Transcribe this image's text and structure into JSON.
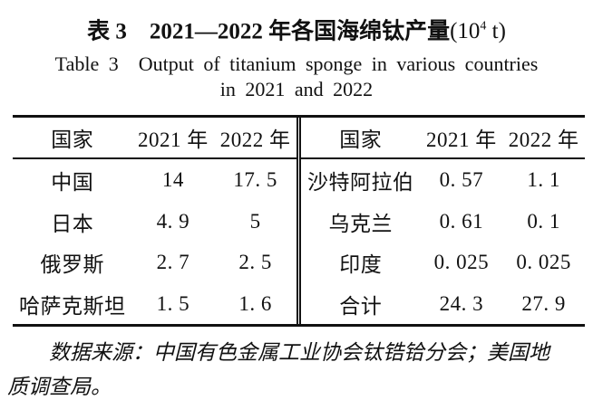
{
  "title": {
    "zh_main": "表 3　2021—2022 年各国海绵钛产量",
    "unit_pre": "(10",
    "unit_sup": "4",
    "unit_post": " t)",
    "en_line1": "Table 3　Output of titanium sponge in various countries",
    "en_line2": "in 2021 and 2022"
  },
  "table": {
    "left": {
      "headers": [
        "国家",
        "2021 年",
        "2022 年"
      ],
      "rows": [
        {
          "country": "中国",
          "y2021": "14",
          "y2022": "17. 5"
        },
        {
          "country": "日本",
          "y2021": "4. 9",
          "y2022": "5"
        },
        {
          "country": "俄罗斯",
          "y2021": "2. 7",
          "y2022": "2. 5"
        },
        {
          "country": "哈萨克斯坦",
          "y2021": "1. 5",
          "y2022": "1. 6"
        }
      ]
    },
    "right": {
      "headers": [
        "国家",
        "2021 年",
        "2022 年"
      ],
      "rows": [
        {
          "country": "沙特阿拉伯",
          "y2021": "0. 57",
          "y2022": "1. 1"
        },
        {
          "country": "乌克兰",
          "y2021": "0. 61",
          "y2022": "0. 1"
        },
        {
          "country": "印度",
          "y2021": "0. 025",
          "y2022": "0. 025"
        },
        {
          "country": "合计",
          "y2021": "24. 3",
          "y2022": "27. 9"
        }
      ]
    }
  },
  "note": {
    "line1": "数据来源：中国有色金属工业协会钛锆铪分会；美国地",
    "line2": "质调查局。"
  }
}
